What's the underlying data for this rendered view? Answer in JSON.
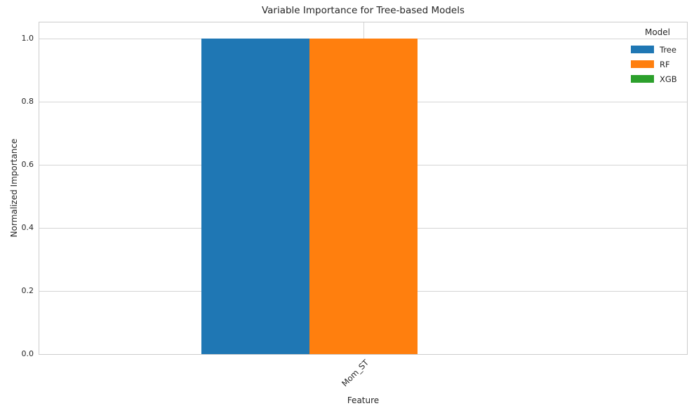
{
  "chart_data": {
    "type": "bar",
    "title": "Variable Importance for Tree-based Models",
    "xlabel": "Feature",
    "ylabel": "Normalized Importance",
    "categories": [
      "Mom_ST"
    ],
    "series": [
      {
        "name": "Tree",
        "color": "#1f77b4",
        "values": [
          1.0
        ]
      },
      {
        "name": "RF",
        "color": "#ff7f0e",
        "values": [
          1.0
        ]
      },
      {
        "name": "XGB",
        "color": "#2ca02c",
        "values": [
          0.0
        ]
      }
    ],
    "ylim": [
      0,
      1.05
    ],
    "yticks": [
      0.0,
      0.2,
      0.4,
      0.6,
      0.8,
      1.0
    ],
    "ytick_format_decimals": 1,
    "grid": true,
    "legend_title": "Model",
    "legend_position": "upper right",
    "colors": {
      "grid": "#d4d4d4",
      "spine": "#cccccc",
      "text": "#262626",
      "background": "#ffffff"
    }
  }
}
